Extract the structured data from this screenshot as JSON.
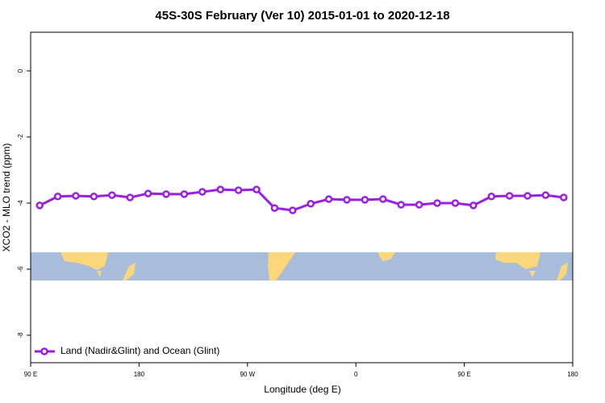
{
  "chart_data": {
    "type": "line",
    "title": "45S-30S February (Ver 10)   2015-01-01 to 2020-12-18",
    "xlabel": "Longitude (deg E)",
    "ylabel": "XCO2 - MLO trend (ppm)",
    "x": [
      97.5,
      112.5,
      127.5,
      142.5,
      157.5,
      172.5,
      187.5,
      202.5,
      217.5,
      232.5,
      247.5,
      262.5,
      277.5,
      292.5,
      307.5,
      322.5,
      337.5,
      352.5,
      367.5,
      382.5,
      397.5,
      412.5,
      427.5,
      442.5,
      457.5,
      472.5,
      487.5,
      502.5,
      517.5,
      532.5
    ],
    "series": [
      {
        "name": "Land (Nadir&Glint) and Ocean (Glint)",
        "color": "#9b1fe0",
        "values": [
          -4.07,
          -3.8,
          -3.78,
          -3.8,
          -3.76,
          -3.83,
          -3.71,
          -3.73,
          -3.73,
          -3.66,
          -3.59,
          -3.61,
          -3.59,
          -4.15,
          -4.22,
          -4.02,
          -3.88,
          -3.9,
          -3.9,
          -3.88,
          -4.05,
          -4.05,
          -4.0,
          -4.0,
          -4.07,
          -3.8,
          -3.78,
          -3.78,
          -3.76,
          -3.83
        ]
      }
    ],
    "xlim": [
      90,
      540
    ],
    "xticks": [
      {
        "value": 90,
        "label": "90 E"
      },
      {
        "value": 180,
        "label": "180"
      },
      {
        "value": 270,
        "label": "90 W"
      },
      {
        "value": 360,
        "label": "0"
      },
      {
        "value": 450,
        "label": "90 E"
      },
      {
        "value": 540,
        "label": "180"
      }
    ],
    "ylim": [
      -8.83,
      1.17
    ],
    "yticks": [
      0,
      -2,
      -4,
      -6,
      -8
    ],
    "legend": "bottom-left"
  }
}
